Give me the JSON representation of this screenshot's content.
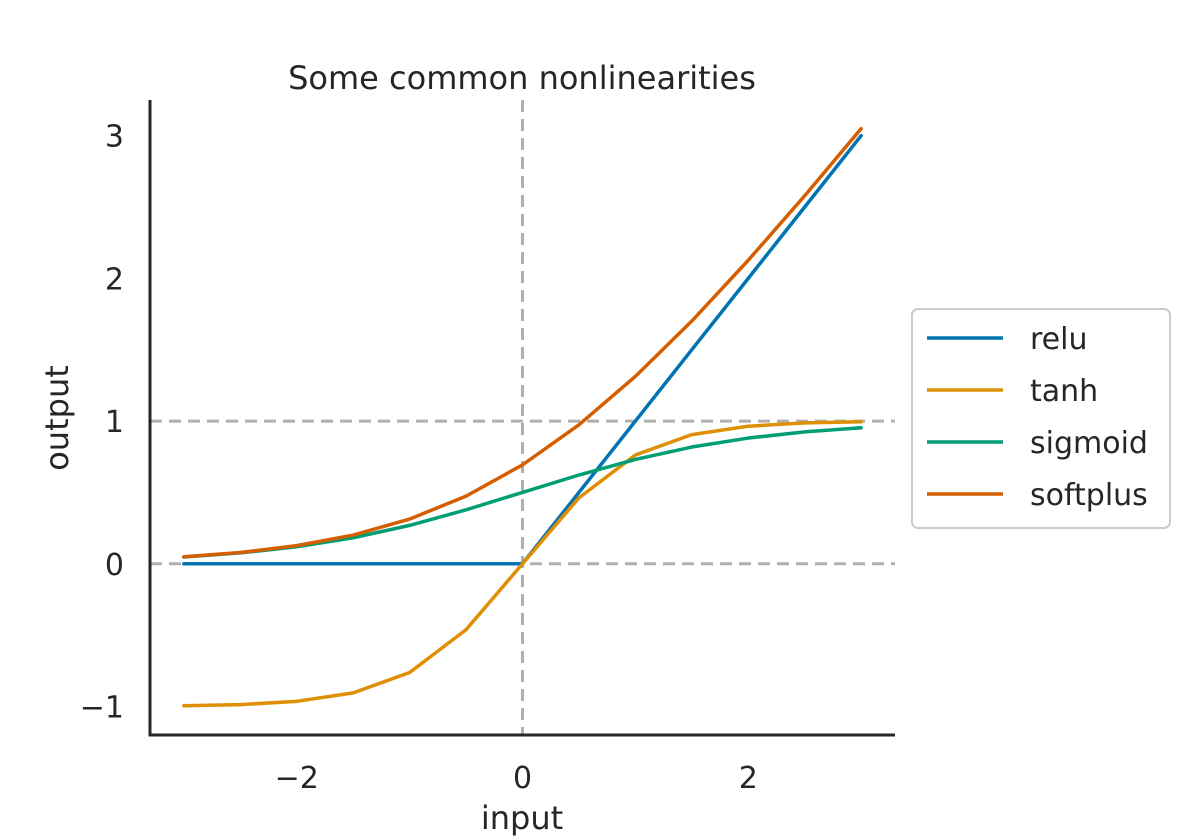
{
  "chart_data": {
    "type": "line",
    "title": "Some common nonlinearities",
    "xlabel": "input",
    "ylabel": "output",
    "xlim": [
      -3.3,
      3.3
    ],
    "ylim": [
      -1.2,
      3.25
    ],
    "x_ticks": [
      -2,
      0,
      2
    ],
    "y_ticks": [
      -1,
      0,
      1,
      2,
      3
    ],
    "x_tick_labels": [
      "−2",
      "0",
      "2"
    ],
    "y_tick_labels": [
      "−1",
      "0",
      "1",
      "2",
      "3"
    ],
    "x_domain": [
      -3,
      3
    ],
    "grid": false,
    "legend_position": "center-right, outside plot",
    "reference_lines": [
      {
        "orientation": "horizontal",
        "value": 0,
        "style": "dashed",
        "color": "#b0b0b0"
      },
      {
        "orientation": "horizontal",
        "value": 1,
        "style": "dashed",
        "color": "#b0b0b0"
      },
      {
        "orientation": "vertical",
        "value": 0,
        "style": "dashed",
        "color": "#b0b0b0"
      }
    ],
    "x": [
      -3.0,
      -2.5,
      -2.0,
      -1.5,
      -1.0,
      -0.5,
      0.0,
      0.5,
      1.0,
      1.5,
      2.0,
      2.5,
      3.0
    ],
    "series": [
      {
        "name": "relu",
        "color": "#0173b2",
        "values": [
          0,
          0,
          0,
          0,
          0,
          0,
          0,
          0.5,
          1.0,
          1.5,
          2.0,
          2.5,
          3.0
        ]
      },
      {
        "name": "tanh",
        "color": "#de8f05",
        "values": [
          -0.995,
          -0.987,
          -0.964,
          -0.905,
          -0.762,
          -0.462,
          0,
          0.462,
          0.762,
          0.905,
          0.964,
          0.987,
          0.995
        ]
      },
      {
        "name": "sigmoid",
        "color": "#029e73",
        "values": [
          0.047,
          0.076,
          0.119,
          0.182,
          0.269,
          0.378,
          0.5,
          0.622,
          0.731,
          0.818,
          0.881,
          0.924,
          0.953
        ]
      },
      {
        "name": "softplus",
        "color": "#d55e00",
        "values": [
          0.049,
          0.079,
          0.127,
          0.201,
          0.313,
          0.474,
          0.693,
          0.974,
          1.313,
          1.701,
          2.127,
          2.579,
          3.049
        ]
      }
    ]
  }
}
